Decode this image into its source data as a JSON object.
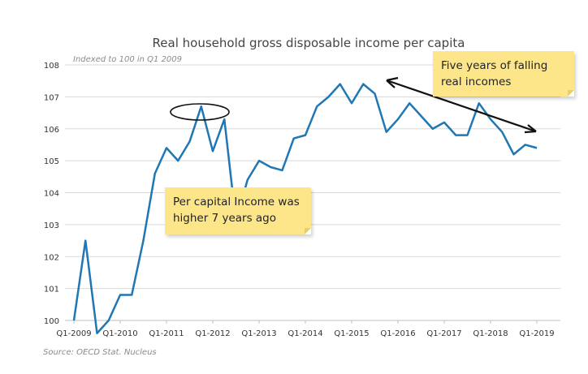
{
  "chart_data": {
    "type": "line",
    "title": "Real household gross disposable income per capita",
    "subtitle": "Indexed to 100 in Q1 2009",
    "source": "Source: OECD Stat. Nucleus",
    "ylim": [
      100,
      108
    ],
    "yticks": [
      "100",
      "101",
      "102",
      "103",
      "104",
      "105",
      "106",
      "107",
      "108"
    ],
    "xticks": [
      "Q1-2009",
      "Q1-2010",
      "Q1-2011",
      "Q1-2012",
      "Q1-2013",
      "Q1-2014",
      "Q1-2015",
      "Q1-2016",
      "Q1-2017",
      "Q1-2018",
      "Q1-2019"
    ],
    "line_color": "#1f77b4",
    "series": [
      {
        "x": [
          "Q1-2009",
          "Q2-2009",
          "Q3-2009",
          "Q4-2009",
          "Q1-2010",
          "Q2-2010",
          "Q3-2010",
          "Q4-2010",
          "Q1-2011",
          "Q2-2011",
          "Q3-2011",
          "Q4-2011",
          "Q1-2012",
          "Q2-2012",
          "Q3-2012",
          "Q4-2012",
          "Q1-2013",
          "Q2-2013",
          "Q3-2013",
          "Q4-2013",
          "Q1-2014",
          "Q2-2014",
          "Q3-2014",
          "Q4-2014",
          "Q1-2015",
          "Q2-2015",
          "Q3-2015",
          "Q4-2015",
          "Q1-2016",
          "Q2-2016",
          "Q3-2016",
          "Q4-2016",
          "Q1-2017",
          "Q2-2017",
          "Q3-2017",
          "Q4-2017",
          "Q1-2018",
          "Q2-2018",
          "Q3-2018",
          "Q4-2018",
          "Q1-2019"
        ],
        "values": [
          100.0,
          102.5,
          99.6,
          100.0,
          100.8,
          100.8,
          102.5,
          104.6,
          105.4,
          105.0,
          105.6,
          106.7,
          105.3,
          106.3,
          103.1,
          104.4,
          105.0,
          104.8,
          104.7,
          105.7,
          105.8,
          106.7,
          107.0,
          107.4,
          106.8,
          107.4,
          107.1,
          105.9,
          106.3,
          106.8,
          106.4,
          106.0,
          106.2,
          105.8,
          105.8,
          106.8,
          106.3,
          105.9,
          105.2,
          105.5,
          105.4
        ]
      }
    ],
    "annotations": [
      "Per capital Income was higher 7 years ago",
      "Five years of falling real incomes"
    ]
  },
  "notes": {
    "note1": "Per capital Income was higher 7 years ago",
    "note2": "Five years of falling real incomes"
  }
}
